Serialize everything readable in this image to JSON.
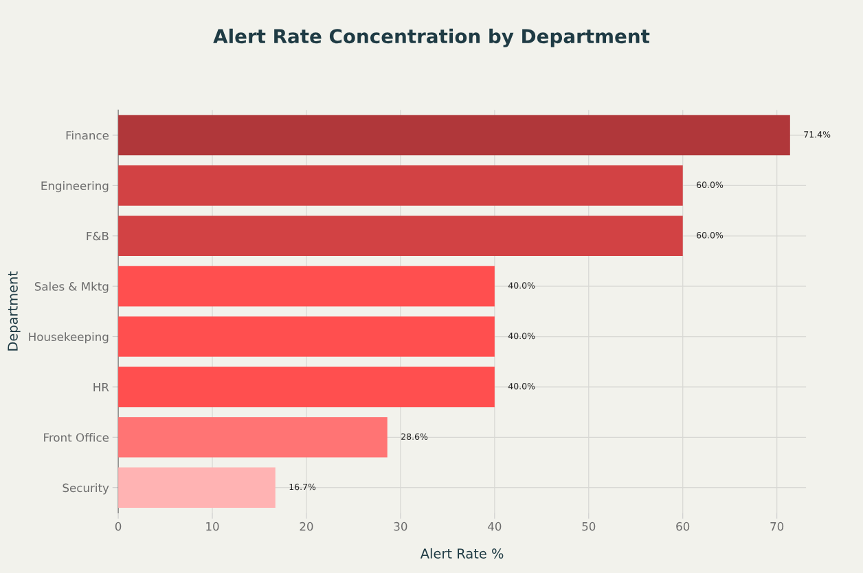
{
  "chart_data": {
    "type": "bar",
    "orientation": "horizontal",
    "title": "Alert Rate Concentration by Department",
    "xlabel": "Alert Rate %",
    "ylabel": "Department",
    "categories": [
      "Finance",
      "Engineering",
      "F&B",
      "Sales & Mktg",
      "Housekeeping",
      "HR",
      "Front Office",
      "Security"
    ],
    "values": [
      71.4,
      60.0,
      60.0,
      40.0,
      40.0,
      40.0,
      28.6,
      16.7
    ],
    "colors": [
      "#b0373a",
      "#d24244",
      "#d24244",
      "#ff4f4f",
      "#ff4f4f",
      "#ff4f4f",
      "#ff7474",
      "#ffb3b3"
    ],
    "value_labels": [
      "71.4%",
      "60.0%",
      "60.0%",
      "40.0%",
      "40.0%",
      "40.0%",
      "28.6%",
      "16.7%"
    ],
    "xlim": [
      0,
      73.1
    ],
    "xticks": [
      0,
      10,
      20,
      30,
      40,
      50,
      60,
      70
    ],
    "grid": true
  }
}
